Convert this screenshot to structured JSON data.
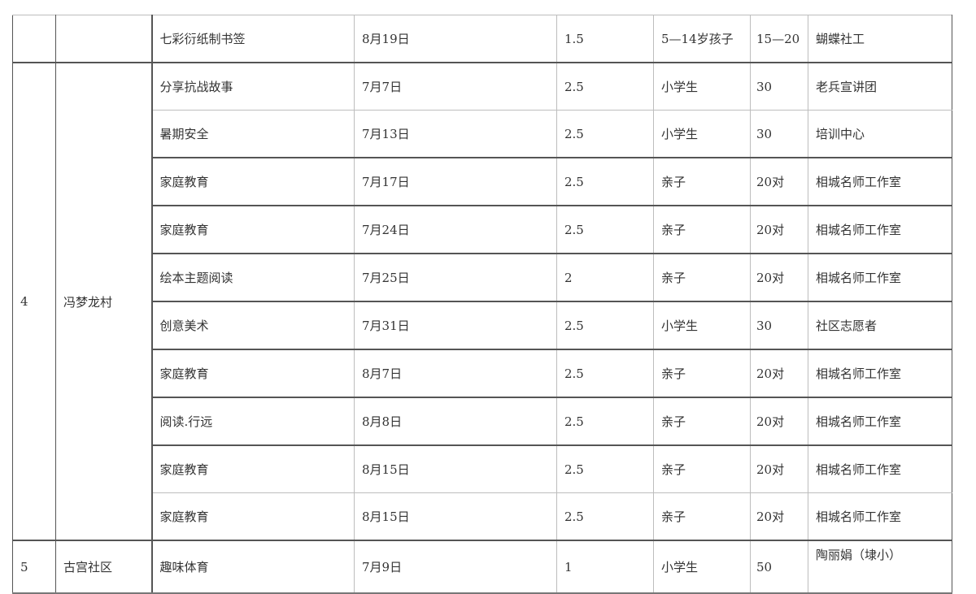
{
  "table": {
    "rows": [
      {
        "no": "",
        "place": "",
        "activity": "七彩衍纸制书签",
        "date": "8月19日",
        "hours": "1.5",
        "audience": "5—14岁孩子",
        "count": "15—20",
        "organizer": "蝴蝶社工"
      },
      {
        "no": "4",
        "place": "冯梦龙村",
        "activity": "分享抗战故事",
        "date": "7月7日",
        "hours": "2.5",
        "audience": "小学生",
        "count": "30",
        "organizer": "老兵宣讲团"
      },
      {
        "activity": "暑期安全",
        "date": "7月13日",
        "hours": "2.5",
        "audience": "小学生",
        "count": "30",
        "organizer": "培训中心"
      },
      {
        "activity": "家庭教育",
        "date": "7月17日",
        "hours": "2.5",
        "audience": "亲子",
        "count": "20对",
        "organizer": "相城名师工作室"
      },
      {
        "activity": "家庭教育",
        "date": "7月24日",
        "hours": "2.5",
        "audience": "亲子",
        "count": "20对",
        "organizer": "相城名师工作室"
      },
      {
        "activity": "绘本主题阅读",
        "date": "7月25日",
        "hours": "2",
        "audience": "亲子",
        "count": "20对",
        "organizer": "相城名师工作室"
      },
      {
        "activity": "创意美术",
        "date": "7月31日",
        "hours": "2.5",
        "audience": "小学生",
        "count": "30",
        "organizer": "社区志愿者"
      },
      {
        "activity": "家庭教育",
        "date": "8月7日",
        "hours": "2.5",
        "audience": "亲子",
        "count": "20对",
        "organizer": "相城名师工作室"
      },
      {
        "activity": "阅读.行远",
        "date": "8月8日",
        "hours": "2.5",
        "audience": "亲子",
        "count": "20对",
        "organizer": "相城名师工作室"
      },
      {
        "activity": "家庭教育",
        "date": "8月15日",
        "hours": "2.5",
        "audience": "亲子",
        "count": "20对",
        "organizer": "相城名师工作室"
      },
      {
        "activity": "家庭教育",
        "date": "8月15日",
        "hours": "2.5",
        "audience": "亲子",
        "count": "20对",
        "organizer": "相城名师工作室"
      },
      {
        "no": "5",
        "place": "古宫社区",
        "activity": "趣味体育",
        "date": "7月9日",
        "hours": "1",
        "audience": "小学生",
        "count": "50",
        "organizer": "陶丽娟（埭小）"
      }
    ]
  }
}
